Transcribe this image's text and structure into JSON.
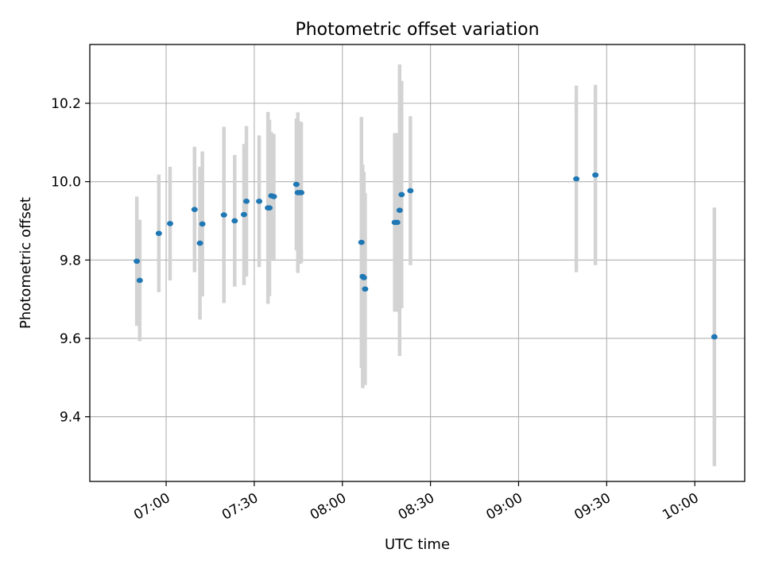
{
  "chart_data": {
    "type": "scatter",
    "title": "Photometric offset variation",
    "xlabel": "UTC time",
    "ylabel": "Photometric offset",
    "x_ticks": [
      "07:00",
      "07:30",
      "08:00",
      "08:30",
      "09:00",
      "09:30",
      "10:00"
    ],
    "y_ticks": [
      "9.4",
      "9.6",
      "9.8",
      "10.0",
      "10.2"
    ],
    "xlim": [
      "06:34",
      "10:17"
    ],
    "ylim": [
      9.235,
      10.35
    ],
    "grid": true,
    "marker_color": "#1f77b4",
    "errorbar_color": "#d3d3d3",
    "points": [
      {
        "x": "06:50:00",
        "y": 9.797,
        "err": 0.165
      },
      {
        "x": "06:51:00",
        "y": 9.748,
        "err": 0.155
      },
      {
        "x": "06:57:30",
        "y": 9.868,
        "err": 0.15
      },
      {
        "x": "07:01:20",
        "y": 9.893,
        "err": 0.145
      },
      {
        "x": "07:09:40",
        "y": 9.929,
        "err": 0.16
      },
      {
        "x": "07:11:30",
        "y": 9.843,
        "err": 0.195
      },
      {
        "x": "07:12:20",
        "y": 9.892,
        "err": 0.185
      },
      {
        "x": "07:19:40",
        "y": 9.915,
        "err": 0.225
      },
      {
        "x": "07:23:20",
        "y": 9.9,
        "err": 0.168
      },
      {
        "x": "07:26:30",
        "y": 9.916,
        "err": 0.18
      },
      {
        "x": "07:27:20",
        "y": 9.95,
        "err": 0.192
      },
      {
        "x": "07:31:40",
        "y": 9.95,
        "err": 0.168
      },
      {
        "x": "07:34:40",
        "y": 9.933,
        "err": 0.245
      },
      {
        "x": "07:35:10",
        "y": 9.933,
        "err": 0.225
      },
      {
        "x": "07:35:50",
        "y": 9.964,
        "err": 0.162
      },
      {
        "x": "07:36:40",
        "y": 9.962,
        "err": 0.16
      },
      {
        "x": "07:44:20",
        "y": 9.993,
        "err": 0.168
      },
      {
        "x": "07:44:50",
        "y": 9.972,
        "err": 0.205
      },
      {
        "x": "07:45:30",
        "y": 9.972,
        "err": 0.182
      },
      {
        "x": "07:46:00",
        "y": 9.972,
        "err": 0.18
      },
      {
        "x": "08:06:30",
        "y": 9.845,
        "err": 0.32
      },
      {
        "x": "08:06:55",
        "y": 9.758,
        "err": 0.285
      },
      {
        "x": "08:07:20",
        "y": 9.755,
        "err": 0.27
      },
      {
        "x": "08:07:45",
        "y": 9.726,
        "err": 0.245
      },
      {
        "x": "08:17:50",
        "y": 9.896,
        "err": 0.228
      },
      {
        "x": "08:18:40",
        "y": 9.896,
        "err": 0.228
      },
      {
        "x": "08:19:30",
        "y": 9.927,
        "err": 0.372
      },
      {
        "x": "08:20:10",
        "y": 9.967,
        "err": 0.29
      },
      {
        "x": "08:23:10",
        "y": 9.977,
        "err": 0.19
      },
      {
        "x": "09:19:40",
        "y": 10.007,
        "err": 0.238
      },
      {
        "x": "09:26:10",
        "y": 10.017,
        "err": 0.23
      },
      {
        "x": "10:06:40",
        "y": 9.604,
        "err": 0.33
      }
    ]
  }
}
